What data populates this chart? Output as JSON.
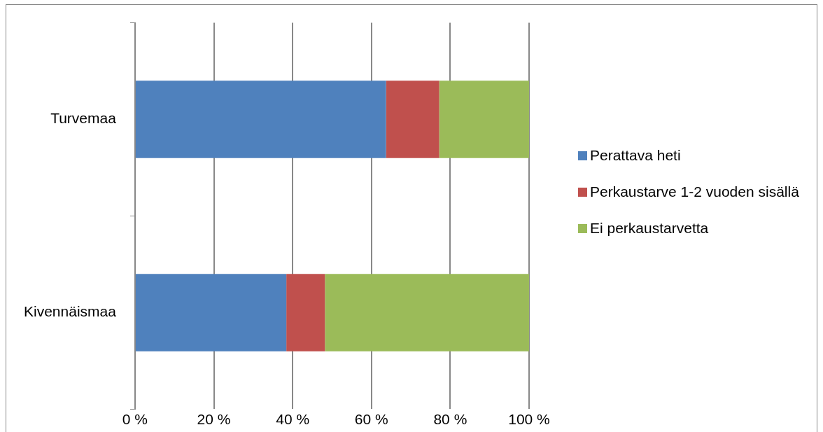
{
  "chart_data": {
    "type": "bar",
    "orientation": "horizontal",
    "stacked": true,
    "categories": [
      "Turvemaa",
      "Kivennäismaa"
    ],
    "series": [
      {
        "name": "Perattava heti",
        "color": "#4f81bd",
        "values": [
          63.7,
          38.4
        ]
      },
      {
        "name": "Perkaustarve 1-2 vuoden sisällä",
        "color": "#c0504d",
        "values": [
          13.5,
          9.8
        ]
      },
      {
        "name": "Ei perkaustarvetta",
        "color": "#9bbb59",
        "values": [
          22.8,
          51.8
        ]
      }
    ],
    "xlim": [
      0,
      100
    ],
    "xticks": [
      {
        "value": 0,
        "label": "0 %"
      },
      {
        "value": 20,
        "label": "20 %"
      },
      {
        "value": 40,
        "label": "40 %"
      },
      {
        "value": 60,
        "label": "60 %"
      },
      {
        "value": 80,
        "label": "80 %"
      },
      {
        "value": 100,
        "label": "100 %"
      }
    ],
    "grid": "x",
    "legend": "right"
  }
}
